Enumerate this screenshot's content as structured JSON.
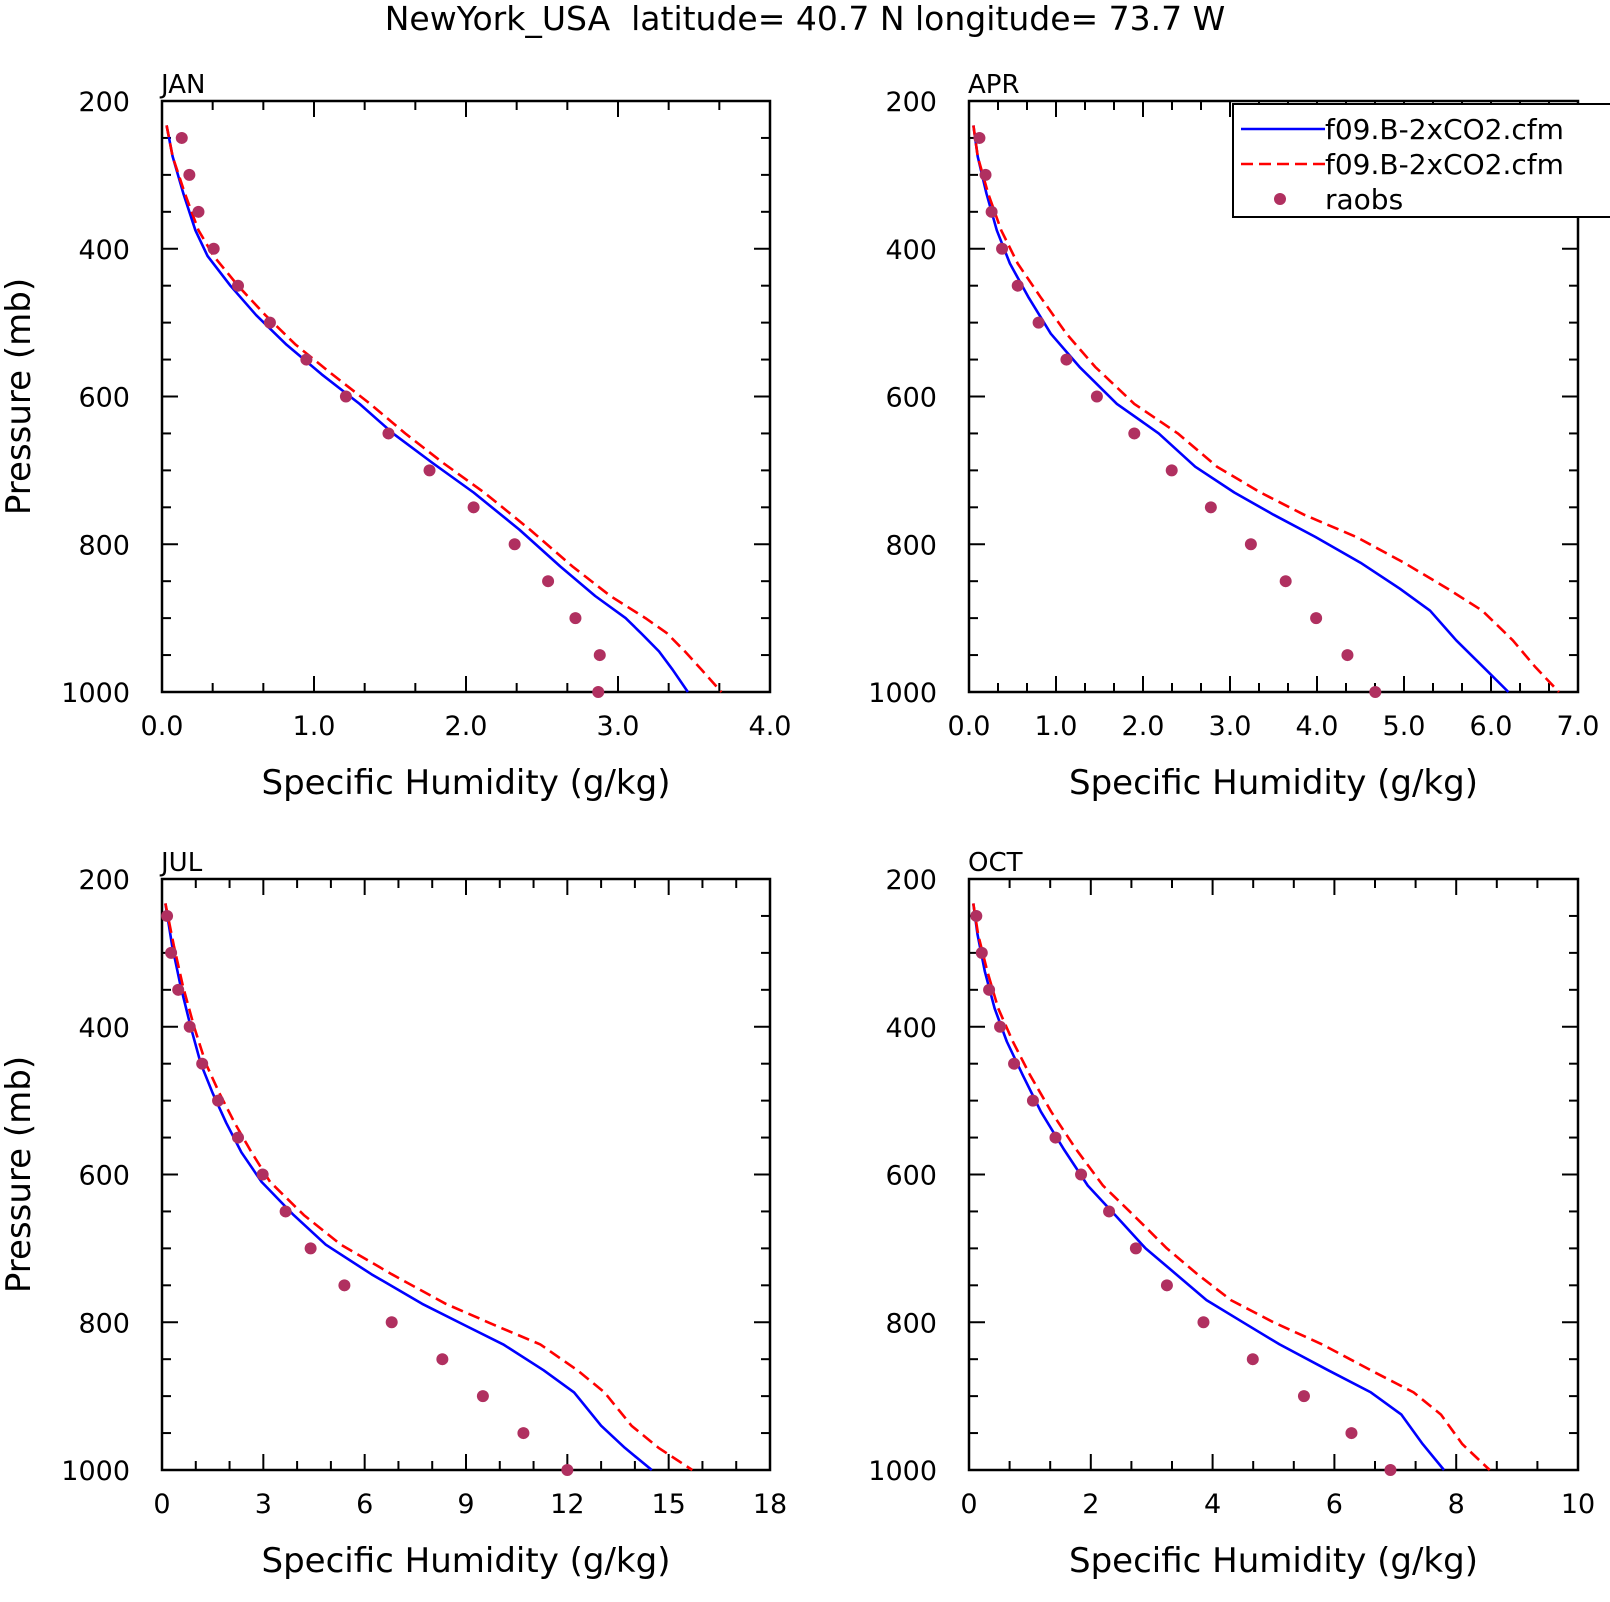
{
  "title": "NewYork_USA  latitude= 40.7 N longitude= 73.7 W",
  "legend": {
    "entries": [
      {
        "label": "f09.B-2xCO2.cfm",
        "color": "#0000ff",
        "style": "solid"
      },
      {
        "label": "f09.B-2xCO2.cfm",
        "color": "#ff0000",
        "style": "dashed"
      },
      {
        "label": "raobs",
        "color": "#b03060",
        "style": "marker"
      }
    ],
    "placement": "top-right of APR panel"
  },
  "colors": {
    "model_blue": "#0000ff",
    "model_red": "#ff0000",
    "raobs": "#b03060"
  },
  "chart_data": [
    {
      "type": "line",
      "title": "JAN",
      "xlabel": "Specific Humidity (g/kg)",
      "ylabel": "Pressure (mb)",
      "xlim": [
        0,
        4
      ],
      "ylim": [
        1000,
        200
      ],
      "xticks": [
        "0.0",
        "1.0",
        "2.0",
        "3.0",
        "4.0"
      ],
      "yticks": [
        "200",
        "400",
        "600",
        "800",
        "1000"
      ],
      "series": [
        {
          "color": "#0000ff",
          "style": "solid",
          "x": [
            0.03,
            0.07,
            0.14,
            0.22,
            0.3,
            0.45,
            0.62,
            0.82,
            1.05,
            1.3,
            1.52,
            1.78,
            2.05,
            2.35,
            2.62,
            2.85,
            3.05,
            3.15,
            3.27,
            3.36,
            3.46
          ],
          "y": [
            233,
            275,
            325,
            375,
            410,
            450,
            490,
            530,
            570,
            610,
            650,
            690,
            730,
            780,
            830,
            870,
            900,
            920,
            945,
            970,
            1000
          ]
        },
        {
          "color": "#ff0000",
          "style": "dashed",
          "x": [
            0.03,
            0.07,
            0.15,
            0.24,
            0.34,
            0.5,
            0.68,
            0.88,
            1.12,
            1.37,
            1.6,
            1.85,
            2.12,
            2.42,
            2.7,
            2.95,
            3.18,
            3.32,
            3.44,
            3.55,
            3.68
          ],
          "y": [
            233,
            275,
            325,
            375,
            410,
            450,
            490,
            530,
            570,
            610,
            650,
            690,
            730,
            780,
            830,
            870,
            900,
            920,
            945,
            970,
            1000
          ]
        }
      ],
      "points": {
        "name": "raobs",
        "x": [
          0.13,
          0.18,
          0.24,
          0.34,
          0.5,
          0.71,
          0.95,
          1.21,
          1.49,
          1.76,
          2.05,
          2.32,
          2.54,
          2.72,
          2.88,
          2.87
        ],
        "y": [
          250,
          300,
          350,
          400,
          450,
          500,
          550,
          600,
          650,
          700,
          750,
          800,
          850,
          900,
          950,
          1000
        ]
      }
    },
    {
      "type": "line",
      "title": "APR",
      "xlabel": "Specific Humidity (g/kg)",
      "ylabel": "",
      "xlim": [
        0,
        7
      ],
      "ylim": [
        1000,
        200
      ],
      "xticks": [
        "0.0",
        "1.0",
        "2.0",
        "3.0",
        "4.0",
        "5.0",
        "6.0",
        "7.0"
      ],
      "yticks": [
        "200",
        "400",
        "600",
        "800",
        "1000"
      ],
      "series": [
        {
          "color": "#0000ff",
          "style": "solid",
          "x": [
            0.05,
            0.1,
            0.2,
            0.32,
            0.47,
            0.68,
            0.94,
            1.27,
            1.7,
            2.18,
            2.6,
            3.05,
            3.5,
            3.98,
            4.5,
            4.95,
            5.3,
            5.6,
            5.9,
            6.2
          ],
          "y": [
            233,
            275,
            325,
            375,
            420,
            465,
            515,
            560,
            610,
            650,
            695,
            730,
            760,
            790,
            825,
            860,
            890,
            930,
            965,
            1000
          ]
        },
        {
          "color": "#ff0000",
          "style": "dashed",
          "x": [
            0.05,
            0.1,
            0.22,
            0.37,
            0.56,
            0.82,
            1.12,
            1.45,
            1.9,
            2.4,
            2.85,
            3.35,
            3.85,
            4.45,
            5.0,
            5.5,
            5.9,
            6.25,
            6.5,
            6.78
          ],
          "y": [
            233,
            275,
            325,
            375,
            420,
            465,
            515,
            560,
            610,
            650,
            695,
            730,
            760,
            790,
            825,
            860,
            890,
            930,
            965,
            1000
          ]
        }
      ],
      "points": {
        "name": "raobs",
        "x": [
          0.12,
          0.19,
          0.26,
          0.38,
          0.56,
          0.8,
          1.12,
          1.47,
          1.9,
          2.33,
          2.78,
          3.24,
          3.64,
          3.99,
          4.35,
          4.67
        ],
        "y": [
          250,
          300,
          350,
          400,
          450,
          500,
          550,
          600,
          650,
          700,
          750,
          800,
          850,
          900,
          950,
          1000
        ]
      }
    },
    {
      "type": "line",
      "title": "JUL",
      "xlabel": "Specific Humidity (g/kg)",
      "ylabel": "Pressure (mb)",
      "xlim": [
        0,
        18
      ],
      "ylim": [
        1000,
        200
      ],
      "xticks": [
        "0",
        "3",
        "6",
        "9",
        "12",
        "15",
        "18"
      ],
      "yticks": [
        "200",
        "400",
        "600",
        "800",
        "1000"
      ],
      "series": [
        {
          "color": "#0000ff",
          "style": "solid",
          "x": [
            0.1,
            0.3,
            0.55,
            0.85,
            1.15,
            1.5,
            1.9,
            2.35,
            2.95,
            3.9,
            4.85,
            6.2,
            7.7,
            9.0,
            10.1,
            11.3,
            12.2,
            13.0,
            13.7,
            14.5
          ],
          "y": [
            233,
            290,
            345,
            400,
            450,
            490,
            530,
            570,
            610,
            655,
            695,
            735,
            775,
            805,
            830,
            865,
            895,
            940,
            970,
            1000
          ]
        },
        {
          "color": "#ff0000",
          "style": "dashed",
          "x": [
            0.1,
            0.35,
            0.62,
            0.95,
            1.3,
            1.7,
            2.15,
            2.65,
            3.2,
            4.2,
            5.3,
            6.8,
            8.4,
            9.9,
            11.2,
            12.3,
            13.1,
            13.9,
            14.7,
            15.7
          ],
          "y": [
            233,
            290,
            345,
            400,
            450,
            490,
            530,
            570,
            610,
            655,
            695,
            735,
            775,
            805,
            830,
            865,
            895,
            940,
            970,
            1000
          ]
        }
      ],
      "points": {
        "name": "raobs",
        "x": [
          0.15,
          0.27,
          0.48,
          0.82,
          1.19,
          1.66,
          2.25,
          2.98,
          3.66,
          4.4,
          5.4,
          6.8,
          8.3,
          9.5,
          10.7,
          12.0
        ],
        "y": [
          250,
          300,
          350,
          400,
          450,
          500,
          550,
          600,
          650,
          700,
          750,
          800,
          850,
          900,
          950,
          1000
        ]
      }
    },
    {
      "type": "line",
      "title": "OCT",
      "xlabel": "Specific Humidity (g/kg)",
      "ylabel": "",
      "xlim": [
        0,
        10
      ],
      "ylim": [
        1000,
        200
      ],
      "xticks": [
        "0",
        "2",
        "4",
        "6",
        "8",
        "10"
      ],
      "yticks": [
        "200",
        "400",
        "600",
        "800",
        "1000"
      ],
      "series": [
        {
          "color": "#0000ff",
          "style": "solid",
          "x": [
            0.07,
            0.14,
            0.26,
            0.42,
            0.62,
            0.88,
            1.18,
            1.55,
            1.95,
            2.4,
            2.9,
            3.4,
            3.9,
            4.5,
            5.1,
            5.9,
            6.6,
            7.1,
            7.45,
            7.8
          ],
          "y": [
            233,
            275,
            325,
            375,
            420,
            465,
            515,
            565,
            615,
            655,
            700,
            735,
            770,
            800,
            830,
            865,
            895,
            925,
            965,
            1000
          ]
        },
        {
          "color": "#ff0000",
          "style": "dashed",
          "x": [
            0.07,
            0.15,
            0.3,
            0.48,
            0.72,
            1.0,
            1.35,
            1.75,
            2.2,
            2.7,
            3.25,
            3.75,
            4.3,
            5.0,
            5.8,
            6.6,
            7.3,
            7.75,
            8.1,
            8.55
          ],
          "y": [
            233,
            275,
            325,
            375,
            420,
            465,
            515,
            565,
            615,
            655,
            700,
            735,
            770,
            800,
            830,
            865,
            895,
            925,
            965,
            1000
          ]
        }
      ],
      "points": {
        "name": "raobs",
        "x": [
          0.12,
          0.21,
          0.33,
          0.51,
          0.74,
          1.05,
          1.42,
          1.84,
          2.3,
          2.74,
          3.25,
          3.85,
          4.66,
          5.5,
          6.28,
          6.92
        ],
        "y": [
          250,
          300,
          350,
          400,
          450,
          500,
          550,
          600,
          650,
          700,
          750,
          800,
          850,
          900,
          950,
          1000
        ]
      }
    }
  ]
}
